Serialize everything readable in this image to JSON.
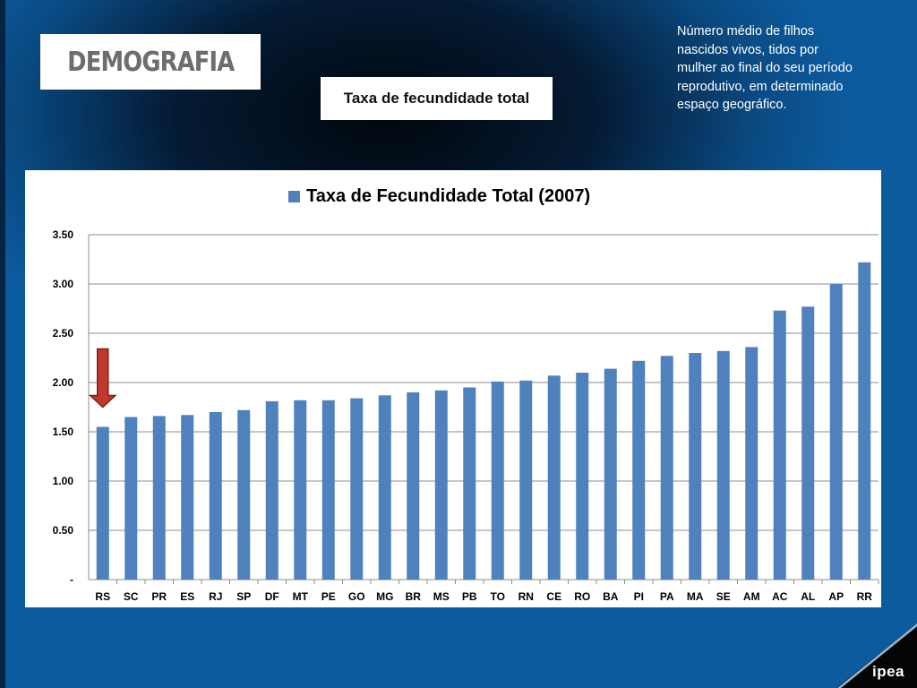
{
  "header": {
    "logo_text": "DEMOGRAFIA",
    "subtitle": "Taxa de fecundidade total",
    "description": "Número médio de filhos nascidos vivos, tidos por mulher ao final do seu período reprodutivo, em determinado espaço geográfico."
  },
  "footer": {
    "brand": "ipea"
  },
  "colors": {
    "bar": "#4f81bd",
    "arrow": "#c0392b",
    "background": "#0a4a82"
  },
  "chart_data": {
    "type": "bar",
    "title": "",
    "legend_position": "top-center",
    "grid": true,
    "ylim": [
      0,
      3.5
    ],
    "y_ticks": [
      "-",
      "0.50",
      "1.00",
      "1.50",
      "2.00",
      "2.50",
      "3.00",
      "3.50"
    ],
    "categories": [
      "RS",
      "SC",
      "PR",
      "ES",
      "RJ",
      "SP",
      "DF",
      "MT",
      "PE",
      "GO",
      "MG",
      "BR",
      "MS",
      "PB",
      "TO",
      "RN",
      "CE",
      "RO",
      "BA",
      "PI",
      "PA",
      "MA",
      "SE",
      "AM",
      "AC",
      "AL",
      "AP",
      "RR"
    ],
    "series": [
      {
        "name": "Taxa de Fecundidade Total (2007)",
        "values": [
          1.55,
          1.65,
          1.66,
          1.67,
          1.7,
          1.72,
          1.81,
          1.82,
          1.82,
          1.84,
          1.87,
          1.9,
          1.92,
          1.95,
          2.01,
          2.02,
          2.07,
          2.1,
          2.14,
          2.22,
          2.27,
          2.3,
          2.32,
          2.36,
          2.73,
          2.77,
          3.0,
          3.22
        ]
      }
    ],
    "annotation": {
      "type": "arrow-down",
      "points_to": "RS"
    }
  }
}
